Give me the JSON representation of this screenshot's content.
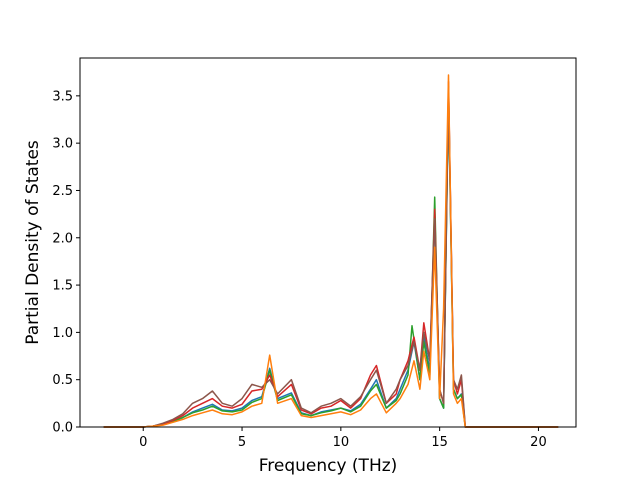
{
  "chart_data": {
    "type": "line",
    "title": "",
    "xlabel": "Frequency (THz)",
    "ylabel": "Partial Density of States",
    "xlim": [
      -3.2,
      21.9
    ],
    "ylim": [
      0,
      3.9
    ],
    "xticks": [
      0,
      5,
      10,
      15,
      20
    ],
    "xtick_labels": [
      "0",
      "5",
      "10",
      "15",
      "20"
    ],
    "yticks": [
      0.0,
      0.5,
      1.0,
      1.5,
      2.0,
      2.5,
      3.0,
      3.5
    ],
    "ytick_labels": [
      "0.0",
      "0.5",
      "1.0",
      "1.5",
      "2.0",
      "2.5",
      "3.0",
      "3.5"
    ],
    "grid": false,
    "legend": "none",
    "series": [
      {
        "color": "#1f77b4",
        "x": [
          -2.0,
          0.0,
          0.5,
          1.0,
          1.5,
          2.0,
          2.5,
          3.0,
          3.5,
          4.0,
          4.5,
          5.0,
          5.5,
          6.0,
          6.4,
          6.8,
          7.5,
          8.0,
          8.5,
          9.0,
          9.5,
          10.0,
          10.5,
          11.0,
          11.5,
          11.8,
          12.3,
          12.8,
          13.0,
          13.4,
          13.7,
          14.0,
          14.2,
          14.5,
          14.75,
          15.0,
          15.2,
          15.45,
          15.7,
          15.9,
          16.1,
          16.3,
          17.0,
          21.0
        ],
        "y": [
          0.0,
          0.0,
          0.01,
          0.03,
          0.06,
          0.1,
          0.16,
          0.2,
          0.24,
          0.18,
          0.17,
          0.2,
          0.28,
          0.32,
          0.62,
          0.3,
          0.36,
          0.15,
          0.12,
          0.16,
          0.18,
          0.2,
          0.17,
          0.24,
          0.4,
          0.5,
          0.2,
          0.3,
          0.4,
          0.6,
          0.9,
          0.5,
          0.95,
          0.6,
          2.25,
          0.3,
          0.2,
          3.5,
          0.4,
          0.3,
          0.35,
          0.0,
          0.0,
          0.0
        ]
      },
      {
        "color": "#2ca02c",
        "x": [
          -2.0,
          0.0,
          0.5,
          1.0,
          1.5,
          2.0,
          2.5,
          3.0,
          3.5,
          4.0,
          4.5,
          5.0,
          5.5,
          6.0,
          6.4,
          6.8,
          7.5,
          8.0,
          8.5,
          9.0,
          9.5,
          10.0,
          10.5,
          11.0,
          11.5,
          11.8,
          12.3,
          12.8,
          13.0,
          13.4,
          13.6,
          14.0,
          14.2,
          14.5,
          14.75,
          15.0,
          15.2,
          15.45,
          15.7,
          15.9,
          16.1,
          16.3,
          17.0,
          21.0
        ],
        "y": [
          0.0,
          0.0,
          0.01,
          0.03,
          0.06,
          0.1,
          0.15,
          0.18,
          0.22,
          0.17,
          0.16,
          0.18,
          0.26,
          0.3,
          0.6,
          0.28,
          0.34,
          0.14,
          0.12,
          0.15,
          0.17,
          0.2,
          0.16,
          0.22,
          0.38,
          0.45,
          0.2,
          0.28,
          0.35,
          0.55,
          1.07,
          0.5,
          0.9,
          0.55,
          2.43,
          0.3,
          0.2,
          3.55,
          0.4,
          0.3,
          0.34,
          0.0,
          0.0,
          0.0
        ]
      },
      {
        "color": "#d62728",
        "x": [
          -2.0,
          0.0,
          0.5,
          1.0,
          1.5,
          2.0,
          2.5,
          3.0,
          3.5,
          4.0,
          4.5,
          5.0,
          5.5,
          6.0,
          6.4,
          6.8,
          7.5,
          8.0,
          8.5,
          9.0,
          9.5,
          10.0,
          10.5,
          11.0,
          11.5,
          11.8,
          12.3,
          12.8,
          13.0,
          13.4,
          13.7,
          14.0,
          14.2,
          14.5,
          14.75,
          15.0,
          15.2,
          15.45,
          15.7,
          15.9,
          16.1,
          16.3,
          17.0,
          21.0
        ],
        "y": [
          0.0,
          0.0,
          0.01,
          0.03,
          0.07,
          0.12,
          0.2,
          0.25,
          0.3,
          0.22,
          0.2,
          0.24,
          0.38,
          0.4,
          0.55,
          0.32,
          0.45,
          0.18,
          0.14,
          0.2,
          0.22,
          0.28,
          0.2,
          0.3,
          0.55,
          0.65,
          0.25,
          0.35,
          0.5,
          0.7,
          0.95,
          0.6,
          1.1,
          0.7,
          2.3,
          0.4,
          0.25,
          3.65,
          0.5,
          0.35,
          0.5,
          0.0,
          0.0,
          0.0
        ]
      },
      {
        "color": "#8c564b",
        "x": [
          -2.0,
          0.0,
          0.5,
          1.0,
          1.5,
          2.0,
          2.5,
          3.0,
          3.5,
          4.0,
          4.5,
          5.0,
          5.5,
          6.0,
          6.4,
          6.8,
          7.5,
          8.0,
          8.5,
          9.0,
          9.5,
          10.0,
          10.5,
          11.0,
          11.5,
          11.8,
          12.3,
          12.8,
          13.0,
          13.4,
          13.7,
          14.0,
          14.2,
          14.5,
          14.75,
          15.0,
          15.2,
          15.45,
          15.7,
          15.9,
          16.1,
          16.3,
          17.0,
          21.0
        ],
        "y": [
          0.0,
          0.0,
          0.01,
          0.04,
          0.08,
          0.14,
          0.25,
          0.3,
          0.38,
          0.25,
          0.22,
          0.3,
          0.45,
          0.42,
          0.5,
          0.35,
          0.5,
          0.2,
          0.15,
          0.22,
          0.25,
          0.3,
          0.22,
          0.32,
          0.5,
          0.6,
          0.25,
          0.4,
          0.5,
          0.65,
          0.9,
          0.6,
          1.0,
          0.7,
          2.2,
          0.4,
          0.25,
          3.6,
          0.5,
          0.4,
          0.55,
          0.0,
          0.0,
          0.0
        ]
      },
      {
        "color": "#ff7f0e",
        "x": [
          -2.0,
          0.0,
          0.5,
          1.0,
          1.5,
          2.0,
          2.5,
          3.0,
          3.5,
          4.0,
          4.5,
          5.0,
          5.5,
          6.0,
          6.4,
          6.8,
          7.5,
          8.0,
          8.5,
          9.0,
          9.5,
          10.0,
          10.5,
          11.0,
          11.5,
          11.8,
          12.3,
          12.8,
          13.0,
          13.4,
          13.7,
          14.0,
          14.2,
          14.5,
          14.75,
          15.0,
          15.2,
          15.45,
          15.7,
          15.9,
          16.1,
          16.3,
          17.0,
          21.0
        ],
        "y": [
          0.0,
          0.0,
          0.01,
          0.02,
          0.05,
          0.08,
          0.12,
          0.15,
          0.18,
          0.14,
          0.13,
          0.16,
          0.22,
          0.25,
          0.76,
          0.25,
          0.3,
          0.12,
          0.1,
          0.12,
          0.14,
          0.16,
          0.13,
          0.18,
          0.3,
          0.35,
          0.15,
          0.25,
          0.3,
          0.45,
          0.7,
          0.4,
          0.8,
          0.5,
          1.9,
          0.3,
          1.25,
          3.72,
          0.35,
          0.25,
          0.3,
          0.0,
          0.0,
          0.0
        ]
      }
    ]
  }
}
